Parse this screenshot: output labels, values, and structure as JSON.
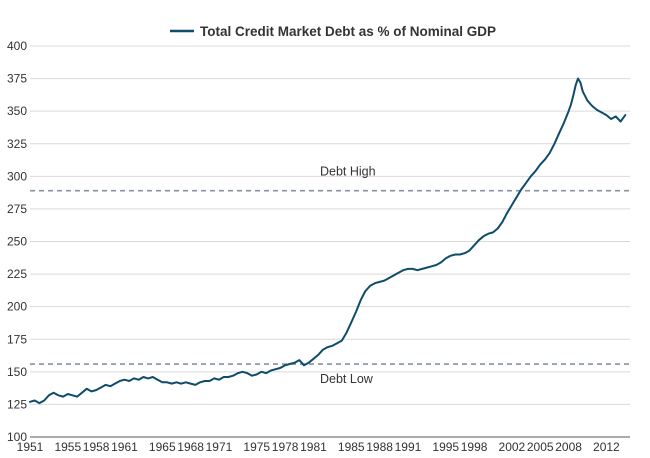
{
  "chart_data": {
    "type": "line",
    "title": "",
    "xlabel": "",
    "ylabel": "",
    "xlim": [
      1951,
      2014.5
    ],
    "ylim": [
      100,
      400
    ],
    "y_ticks": [
      100,
      125,
      150,
      175,
      200,
      225,
      250,
      275,
      300,
      325,
      350,
      375,
      400
    ],
    "x_ticks": [
      1951,
      1955,
      1958,
      1961,
      1965,
      1968,
      1971,
      1975,
      1978,
      1981,
      1985,
      1988,
      1991,
      1995,
      1998,
      2002,
      2005,
      2008,
      2012
    ],
    "x_tick_labels": [
      "1951",
      "1955",
      "1958",
      "1961",
      "1965",
      "1968",
      "1971",
      "1975",
      "1978",
      "1981",
      "1985",
      "1988",
      "1991",
      "1995",
      "1998",
      "2002",
      "2005",
      "2008",
      "2012"
    ],
    "grid": "horizontal",
    "legend": {
      "position": "top-center",
      "entries": [
        "Total Credit Market Debt as % of Nominal GDP"
      ]
    },
    "colors": {
      "series": "#0f4c6b",
      "reference": "#8593a3",
      "grid": "#d9d9d9",
      "axis": "#555555"
    },
    "series": [
      {
        "name": "Total Credit Market Debt as % of Nominal GDP",
        "x": [
          1951.0,
          1951.5,
          1952.0,
          1952.5,
          1953.0,
          1953.5,
          1954.0,
          1954.5,
          1955.0,
          1955.5,
          1956.0,
          1956.5,
          1957.0,
          1957.5,
          1958.0,
          1958.5,
          1959.0,
          1959.5,
          1960.0,
          1960.5,
          1961.0,
          1961.5,
          1962.0,
          1962.5,
          1963.0,
          1963.5,
          1964.0,
          1964.5,
          1965.0,
          1965.5,
          1966.0,
          1966.5,
          1967.0,
          1967.5,
          1968.0,
          1968.5,
          1969.0,
          1969.5,
          1970.0,
          1970.5,
          1971.0,
          1971.5,
          1972.0,
          1972.5,
          1973.0,
          1973.5,
          1974.0,
          1974.5,
          1975.0,
          1975.5,
          1976.0,
          1976.5,
          1977.0,
          1977.5,
          1978.0,
          1978.5,
          1979.0,
          1979.5,
          1980.0,
          1980.5,
          1981.0,
          1981.5,
          1982.0,
          1982.5,
          1983.0,
          1983.5,
          1984.0,
          1984.5,
          1985.0,
          1985.5,
          1986.0,
          1986.5,
          1987.0,
          1987.5,
          1988.0,
          1988.5,
          1989.0,
          1989.5,
          1990.0,
          1990.5,
          1991.0,
          1991.5,
          1992.0,
          1992.5,
          1993.0,
          1993.5,
          1994.0,
          1994.5,
          1995.0,
          1995.5,
          1996.0,
          1996.5,
          1997.0,
          1997.5,
          1998.0,
          1998.5,
          1999.0,
          1999.5,
          2000.0,
          2000.5,
          2001.0,
          2001.5,
          2002.0,
          2002.5,
          2003.0,
          2003.5,
          2004.0,
          2004.5,
          2005.0,
          2005.5,
          2006.0,
          2006.5,
          2007.0,
          2007.5,
          2008.0,
          2008.25,
          2008.5,
          2008.75,
          2009.0,
          2009.25,
          2009.5,
          2010.0,
          2010.5,
          2011.0,
          2011.5,
          2012.0,
          2012.5,
          2013.0,
          2013.5,
          2014.0
        ],
        "y": [
          127,
          128,
          126,
          128,
          132,
          134,
          132,
          131,
          133,
          132,
          131,
          134,
          137,
          135,
          136,
          138,
          140,
          139,
          141,
          143,
          144,
          143,
          145,
          144,
          146,
          145,
          146,
          144,
          142,
          142,
          141,
          142,
          141,
          142,
          141,
          140,
          142,
          143,
          143,
          145,
          144,
          146,
          146,
          147,
          149,
          150,
          149,
          147,
          148,
          150,
          149,
          151,
          152,
          153,
          155,
          156,
          157,
          159,
          155,
          157,
          160,
          163,
          167,
          169,
          170,
          172,
          174,
          180,
          188,
          196,
          205,
          212,
          216,
          218,
          219,
          220,
          222,
          224,
          226,
          228,
          229,
          229,
          228,
          229,
          230,
          231,
          232,
          234,
          237,
          239,
          240,
          240,
          241,
          243,
          247,
          251,
          254,
          256,
          257,
          260,
          265,
          272,
          278,
          284,
          290,
          295,
          300,
          304,
          309,
          313,
          318,
          325,
          333,
          341,
          350,
          355,
          362,
          370,
          375,
          372,
          365,
          358,
          354,
          351,
          349,
          347,
          344,
          346,
          342,
          347
        ]
      }
    ],
    "reference_lines": [
      {
        "label": "Debt High",
        "y": 289
      },
      {
        "label": "Debt Low",
        "y": 156
      }
    ]
  }
}
